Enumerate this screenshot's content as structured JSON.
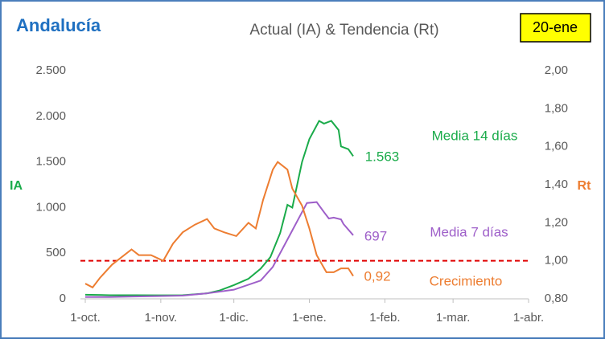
{
  "chart_data": {
    "type": "line",
    "title": "Andalucía",
    "subtitle": "Actual (IA) & Tendencia (Rt)",
    "date_badge": "20-ene",
    "ylabel": "IA",
    "y2label": "Rt",
    "xlim": [
      0,
      182
    ],
    "xticks": [
      {
        "value": 0,
        "label": "1-oct."
      },
      {
        "value": 31,
        "label": "1-nov."
      },
      {
        "value": 61,
        "label": "1-dic."
      },
      {
        "value": 92,
        "label": "1-ene."
      },
      {
        "value": 123,
        "label": "1-feb."
      },
      {
        "value": 151,
        "label": "1-mar."
      },
      {
        "value": 182,
        "label": "1-abr."
      }
    ],
    "ylim": [
      0,
      2500
    ],
    "yticks": [
      0,
      500,
      {
        "value": 1000,
        "label": "1.000"
      },
      {
        "value": 1500,
        "label": "1.500"
      },
      {
        "value": 2000,
        "label": "2.000"
      },
      {
        "value": 2500,
        "label": "2.500"
      }
    ],
    "y2lim": [
      0.8,
      2.0
    ],
    "y2ticks": [
      {
        "value": 0.8,
        "label": "0,80"
      },
      {
        "value": 1.0,
        "label": "1,00"
      },
      {
        "value": 1.2,
        "label": "1,20"
      },
      {
        "value": 1.4,
        "label": "1,40"
      },
      {
        "value": 1.6,
        "label": "1,60"
      },
      {
        "value": 1.8,
        "label": "1,80"
      },
      {
        "value": 2.0,
        "label": "2,00"
      }
    ],
    "grid": false,
    "reference_line": {
      "value": 1.0,
      "axis": "y2",
      "color": "#e00000"
    },
    "series": [
      {
        "name": "Media 14 días",
        "color": "#1aab4a",
        "axis": "y",
        "end_label": "1.563",
        "x": [
          0,
          10,
          20,
          30,
          40,
          50,
          55,
          61,
          67,
          72,
          76,
          80,
          83,
          85,
          89,
          92,
          96,
          98,
          101,
          104,
          105,
          108,
          110
        ],
        "values": [
          45,
          40,
          40,
          38,
          40,
          60,
          90,
          150,
          220,
          330,
          458,
          720,
          1030,
          1000,
          1500,
          1750,
          1950,
          1920,
          1950,
          1850,
          1670,
          1640,
          1563
        ]
      },
      {
        "name": "Media 7 días",
        "color": "#9e5fc9",
        "axis": "y",
        "end_label": "697",
        "x": [
          0,
          10,
          20,
          30,
          40,
          50,
          61,
          72,
          77,
          80,
          84,
          87,
          91,
          95,
          98,
          100,
          102,
          105,
          106,
          110
        ],
        "values": [
          20,
          20,
          25,
          30,
          35,
          60,
          100,
          200,
          350,
          500,
          700,
          850,
          1050,
          1060,
          950,
          880,
          890,
          870,
          820,
          697
        ]
      },
      {
        "name": "Crecimiento",
        "color": "#ed7d31",
        "axis": "y2",
        "end_label": "0,92",
        "x": [
          0,
          3,
          6,
          11,
          15,
          19,
          22,
          27,
          32,
          36,
          40,
          45,
          50,
          53,
          57,
          62,
          67,
          70,
          73,
          77,
          79,
          83,
          85,
          89,
          92,
          95,
          99,
          102,
          105,
          108,
          110
        ],
        "values": [
          0.88,
          0.86,
          0.91,
          0.98,
          1.02,
          1.06,
          1.03,
          1.03,
          1.0,
          1.09,
          1.15,
          1.19,
          1.22,
          1.17,
          1.15,
          1.13,
          1.2,
          1.17,
          1.32,
          1.48,
          1.52,
          1.48,
          1.38,
          1.29,
          1.17,
          1.03,
          0.94,
          0.94,
          0.96,
          0.96,
          0.92
        ]
      }
    ]
  }
}
